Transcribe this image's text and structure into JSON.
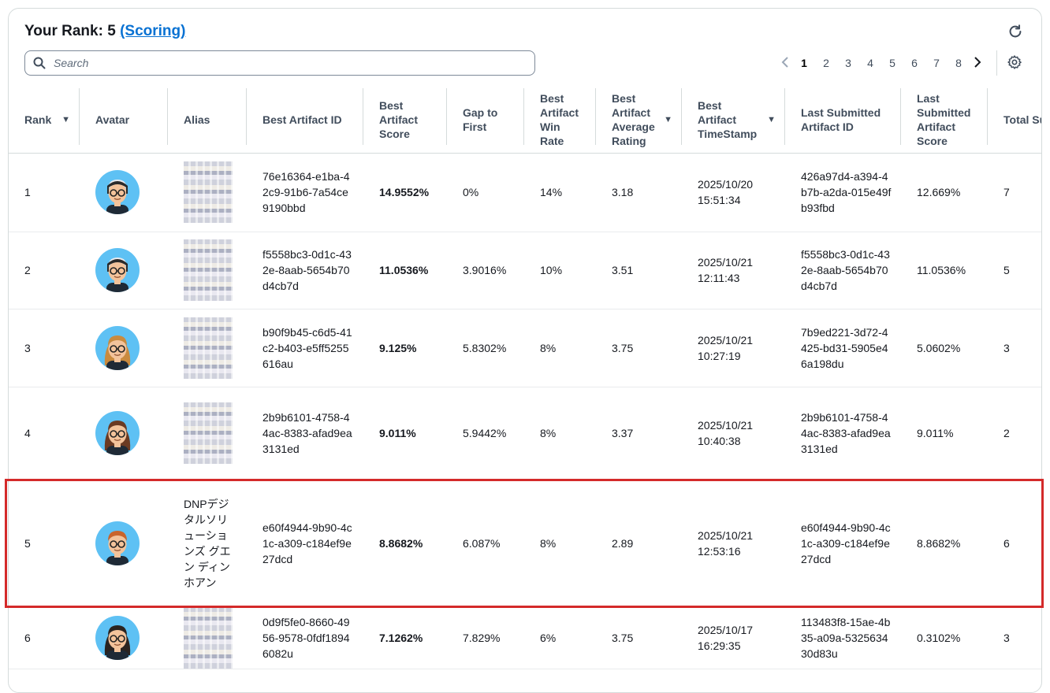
{
  "header": {
    "rank_label": "Your Rank: 5",
    "scoring_link": "(Scoring)",
    "search_placeholder": "Search"
  },
  "pagination": {
    "pages": [
      "1",
      "2",
      "3",
      "4",
      "5",
      "6",
      "7",
      "8"
    ],
    "current": "1"
  },
  "columns": [
    {
      "label": "Rank",
      "sortable": true
    },
    {
      "label": "Avatar"
    },
    {
      "label": "Alias"
    },
    {
      "label": "Best Artifact ID"
    },
    {
      "label": "Best Artifact Score"
    },
    {
      "label": "Gap to First"
    },
    {
      "label": "Best Artifact Win Rate"
    },
    {
      "label": "Best Artifact Average Rating",
      "sortable": true
    },
    {
      "label": "Best Artifact TimeStamp",
      "sortable": true
    },
    {
      "label": "Last Submitted Artifact ID"
    },
    {
      "label": "Last Submitted Artifact Score"
    },
    {
      "label": "Total Submis"
    }
  ],
  "rows": [
    {
      "rank": "1",
      "avatar": "male-glasses-white-hair",
      "alias": "",
      "alias_blurred": true,
      "best_id": "76e16364-e1ba-42c9-91b6-7a54ce9190bbd",
      "best_score": "14.9552%",
      "gap": "0%",
      "win_rate": "14%",
      "avg_rating": "3.18",
      "timestamp": "2025/10/20 15:51:34",
      "last_id": "426a97d4-a394-4b7b-a2da-015e49fb93fbd",
      "last_score": "12.669%",
      "total": "7"
    },
    {
      "rank": "2",
      "avatar": "male-glasses-white-hair",
      "alias": "",
      "alias_blurred": true,
      "best_id": "f5558bc3-0d1c-432e-8aab-5654b70d4cb7d",
      "best_score": "11.0536%",
      "gap": "3.9016%",
      "win_rate": "10%",
      "avg_rating": "3.51",
      "timestamp": "2025/10/21 12:11:43",
      "last_id": "f5558bc3-0d1c-432e-8aab-5654b70d4cb7d",
      "last_score": "11.0536%",
      "total": "5"
    },
    {
      "rank": "3",
      "avatar": "female-glasses-blonde",
      "alias": "",
      "alias_blurred": true,
      "best_id": "b90f9b45-c6d5-41c2-b403-e5ff5255616au",
      "best_score": "9.125%",
      "gap": "5.8302%",
      "win_rate": "8%",
      "avg_rating": "3.75",
      "timestamp": "2025/10/21 10:27:19",
      "last_id": "7b9ed221-3d72-4425-bd31-5905e46a198du",
      "last_score": "5.0602%",
      "total": "3"
    },
    {
      "rank": "4",
      "avatar": "female-glasses-brown-bob",
      "alias": "",
      "alias_blurred": true,
      "best_id": "2b9b6101-4758-44ac-8383-afad9ea3131ed",
      "best_score": "9.011%",
      "gap": "5.9442%",
      "win_rate": "8%",
      "avg_rating": "3.37",
      "timestamp": "2025/10/21 10:40:38",
      "last_id": "2b9b6101-4758-44ac-8383-afad9ea3131ed",
      "last_score": "9.011%",
      "total": "2"
    },
    {
      "rank": "5",
      "avatar": "male-glasses-ginger",
      "alias": "DNPデジタルソリューションズ グエン ディン　ホアン",
      "alias_blurred": false,
      "best_id": "e60f4944-9b90-4c1c-a309-c184ef9e27dcd",
      "best_score": "8.8682%",
      "gap": "6.087%",
      "win_rate": "8%",
      "avg_rating": "2.89",
      "timestamp": "2025/10/21 12:53:16",
      "last_id": "e60f4944-9b90-4c1c-a309-c184ef9e27dcd",
      "last_score": "8.8682%",
      "total": "6"
    },
    {
      "rank": "6",
      "avatar": "female-glasses-dark-hair",
      "alias": "",
      "alias_blurred": true,
      "best_id": "0d9f5fe0-8660-4956-9578-0fdf18946082u",
      "best_score": "7.1262%",
      "gap": "7.829%",
      "win_rate": "6%",
      "avg_rating": "3.75",
      "timestamp": "2025/10/17 16:29:35",
      "last_id": "113483f8-15ae-4b35-a09a-532563430d83u",
      "last_score": "0.3102%",
      "total": "3"
    }
  ],
  "avatar_palettes": {
    "male-glasses-white-hair": {
      "hair": "#e8eaee",
      "band": "#2a2a2a",
      "skin": "#f3c39b"
    },
    "female-glasses-blonde": {
      "hair": "#c98a3e",
      "band": "#c98a3e",
      "skin": "#f3c39b"
    },
    "female-glasses-brown-bob": {
      "hair": "#6b3a22",
      "band": "#6b3a22",
      "skin": "#f3c39b"
    },
    "male-glasses-ginger": {
      "hair": "#c9642b",
      "band": "#c9642b",
      "skin": "#f3c39b"
    },
    "female-glasses-dark-hair": {
      "hair": "#2a2320",
      "band": "#2a2320",
      "skin": "#f3c39b"
    }
  },
  "colors": {
    "accent_link": "#0972d3",
    "highlight_border": "#d42a2a",
    "avatar_bg": "#5ec1f4"
  }
}
